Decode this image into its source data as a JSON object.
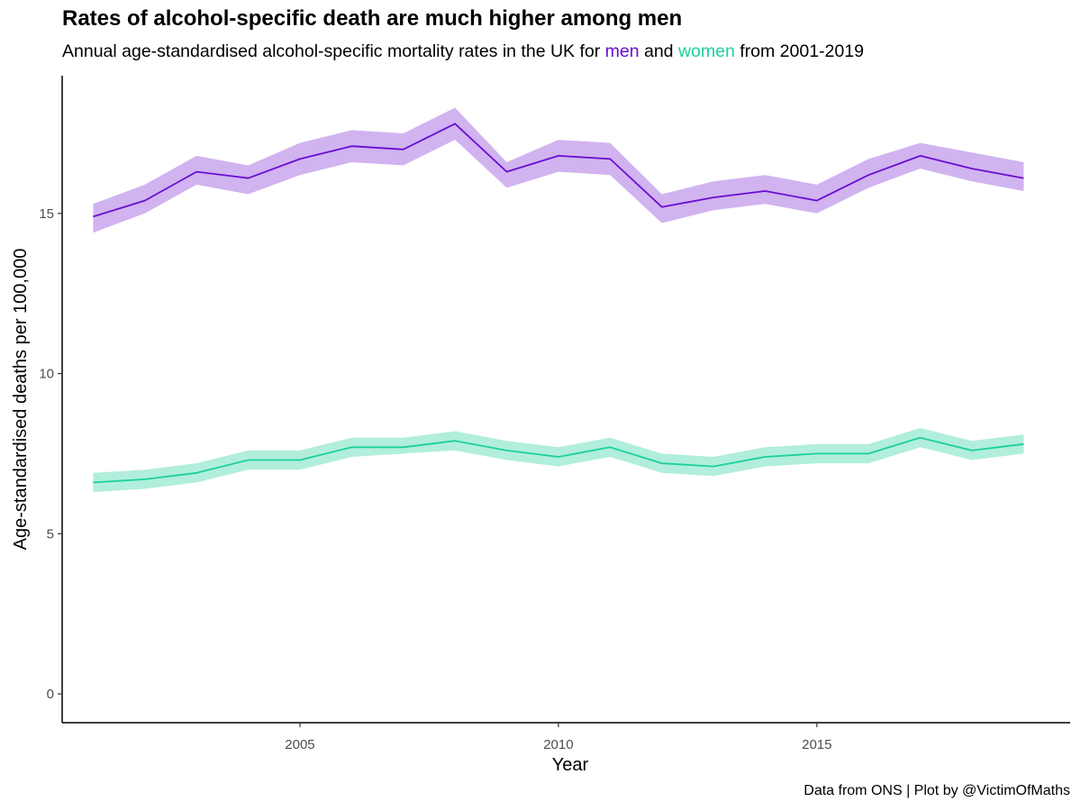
{
  "chart_data": {
    "type": "line",
    "title": "Rates of alcohol-specific death are much higher among men",
    "subtitle": {
      "before": "Annual age-standardised alcohol-specific mortality rates in the UK for ",
      "men": "men",
      "middle": " and ",
      "women": "women",
      "after": " from 2001-2019"
    },
    "caption": "Data from ONS | Plot by @VictimOfMaths",
    "xlabel": "Year",
    "ylabel": "Age-standardised deaths per 100,000",
    "x": [
      2001,
      2002,
      2003,
      2004,
      2005,
      2006,
      2007,
      2008,
      2009,
      2010,
      2011,
      2012,
      2013,
      2014,
      2015,
      2016,
      2017,
      2018,
      2019
    ],
    "xticks": [
      2005,
      2010,
      2015
    ],
    "yticks": [
      0,
      5,
      10,
      15
    ],
    "xlim": [
      2000.4,
      2019.9
    ],
    "ylim": [
      -0.9,
      19.3
    ],
    "grid": false,
    "legend": "none",
    "series": [
      {
        "key": "men",
        "color": "#6a0dd1",
        "ribbon_color": "#d1b3f0",
        "values": [
          14.9,
          15.4,
          16.3,
          16.1,
          16.7,
          17.1,
          17.0,
          17.8,
          16.3,
          16.8,
          16.7,
          15.2,
          15.5,
          15.7,
          15.4,
          16.2,
          16.8,
          16.4,
          16.1
        ],
        "lower": [
          14.4,
          15.0,
          15.9,
          15.6,
          16.2,
          16.6,
          16.5,
          17.3,
          15.8,
          16.3,
          16.2,
          14.7,
          15.1,
          15.3,
          15.0,
          15.8,
          16.4,
          16.0,
          15.7
        ],
        "upper": [
          15.3,
          15.9,
          16.8,
          16.5,
          17.2,
          17.6,
          17.5,
          18.3,
          16.6,
          17.3,
          17.2,
          15.6,
          16.0,
          16.2,
          15.9,
          16.7,
          17.2,
          16.9,
          16.6
        ]
      },
      {
        "key": "women",
        "color": "#1bd09a",
        "ribbon_color": "#b1eedc",
        "values": [
          6.6,
          6.7,
          6.9,
          7.3,
          7.3,
          7.7,
          7.7,
          7.9,
          7.6,
          7.4,
          7.7,
          7.2,
          7.1,
          7.4,
          7.5,
          7.5,
          8.0,
          7.6,
          7.8
        ],
        "lower": [
          6.3,
          6.4,
          6.6,
          7.0,
          7.0,
          7.4,
          7.5,
          7.6,
          7.3,
          7.1,
          7.4,
          6.9,
          6.8,
          7.1,
          7.2,
          7.2,
          7.7,
          7.3,
          7.5
        ],
        "upper": [
          6.9,
          7.0,
          7.2,
          7.6,
          7.6,
          8.0,
          8.0,
          8.2,
          7.9,
          7.7,
          8.0,
          7.5,
          7.4,
          7.7,
          7.8,
          7.8,
          8.3,
          7.9,
          8.1
        ]
      }
    ]
  }
}
